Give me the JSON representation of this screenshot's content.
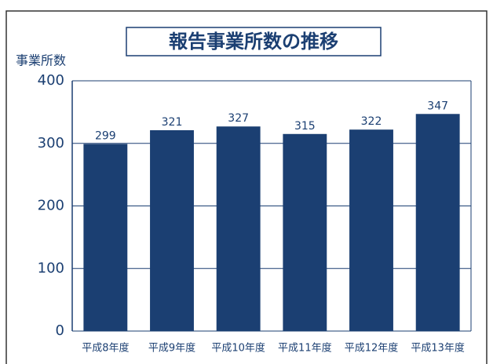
{
  "chart_data": {
    "type": "bar",
    "title": "報告事業所数の推移",
    "y_label": "事業所数",
    "categories": [
      "平成8年度",
      "平成9年度",
      "平成10年度",
      "平成11年度",
      "平成12年度",
      "平成13年度"
    ],
    "values": [
      299,
      321,
      327,
      315,
      322,
      347
    ],
    "color": "#1b3f72",
    "ylim": [
      0,
      400
    ],
    "yticks": [
      0,
      100,
      200,
      300,
      400
    ],
    "grid": true
  }
}
